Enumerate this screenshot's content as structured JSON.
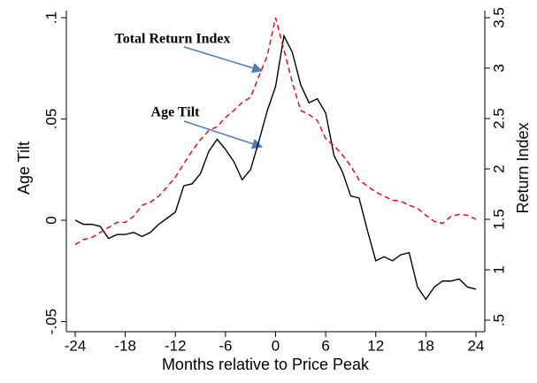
{
  "chart_data": {
    "type": "line",
    "xlabel": "Months relative to Price Peak",
    "ylabel": "Age Tilt",
    "y2label": "Return Index",
    "annotations": [
      "Total Return Index",
      "Age Tilt"
    ],
    "x": [
      -24,
      -23,
      -22,
      -21,
      -20,
      -19,
      -18,
      -17,
      -16,
      -15,
      -14,
      -13,
      -12,
      -11,
      -10,
      -9,
      -8,
      -7,
      -6,
      -5,
      -4,
      -3,
      -2,
      -1,
      0,
      1,
      2,
      3,
      4,
      5,
      6,
      7,
      8,
      9,
      10,
      11,
      12,
      13,
      14,
      15,
      16,
      17,
      18,
      19,
      20,
      21,
      22,
      23,
      24
    ],
    "series": [
      {
        "color": "#000000",
        "dashed": false,
        "axis": "y",
        "values": [
          0,
          -0.002,
          -0.002,
          -0.003,
          -0.009,
          -0.007,
          -0.007,
          -0.006,
          -0.008,
          -0.006,
          -0.002,
          0.001,
          0.004,
          0.017,
          0.018,
          0.023,
          0.034,
          0.04,
          0.035,
          0.029,
          0.02,
          0.025,
          0.039,
          0.054,
          0.066,
          0.091,
          0.083,
          0.067,
          0.058,
          0.06,
          0.053,
          0.032,
          0.024,
          0.012,
          0.011,
          -0.005,
          -0.02,
          -0.018,
          -0.02,
          -0.017,
          -0.016,
          -0.033,
          -0.039,
          -0.033,
          -0.03,
          -0.03,
          -0.029,
          -0.033,
          -0.034
        ]
      },
      {
        "color": "#e8000b",
        "dashed": true,
        "axis": "y2",
        "values": [
          1.25,
          1.3,
          1.32,
          1.37,
          1.42,
          1.47,
          1.47,
          1.53,
          1.64,
          1.67,
          1.73,
          1.82,
          1.92,
          2.05,
          2.18,
          2.29,
          2.38,
          2.42,
          2.51,
          2.58,
          2.66,
          2.71,
          2.92,
          3.12,
          3.5,
          3.18,
          2.86,
          2.58,
          2.54,
          2.48,
          2.3,
          2.23,
          2.14,
          2.03,
          1.89,
          1.83,
          1.77,
          1.73,
          1.69,
          1.68,
          1.64,
          1.61,
          1.54,
          1.48,
          1.46,
          1.53,
          1.55,
          1.54,
          1.5
        ]
      }
    ],
    "xlim": [
      -25.06,
      25.06
    ],
    "xticks": [
      -24,
      -18,
      -12,
      -6,
      0,
      6,
      12,
      18,
      24
    ],
    "ylim": [
      -0.055,
      0.1035
    ],
    "yticks": [
      {
        "value": 0.1,
        "label": ".1"
      },
      {
        "value": 0.05,
        "label": ".05"
      },
      0,
      {
        "value": -0.05,
        "label": "-.05"
      }
    ],
    "y2lim": [
      0.386,
      3.57
    ],
    "y2ticks": [
      3.5,
      3,
      2.5,
      2,
      1.5,
      1,
      {
        "value": 0.5,
        "label": ".5"
      }
    ]
  }
}
